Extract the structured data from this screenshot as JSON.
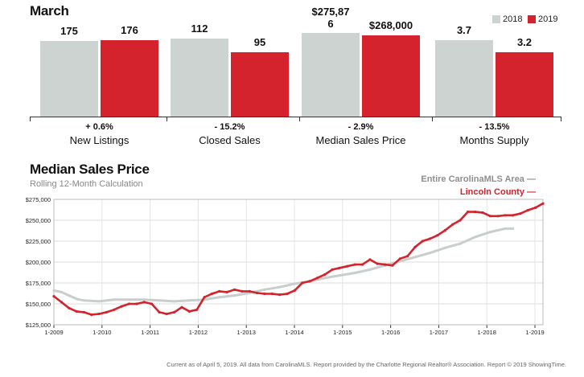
{
  "title": "March",
  "legend": [
    {
      "label": "2018",
      "color": "#cdd3d1"
    },
    {
      "label": "2019",
      "color": "#d4232c"
    }
  ],
  "chart_data": [
    {
      "type": "bar",
      "title": "March",
      "categories": [
        "New Listings",
        "Closed Sales",
        "Median Sales Price",
        "Months Supply"
      ],
      "series": [
        {
          "name": "2018",
          "labels": [
            "175",
            "112",
            "$275,876",
            "3.7"
          ]
        },
        {
          "name": "2019",
          "labels": [
            "176",
            "95",
            "$268,000",
            "3.2"
          ]
        }
      ],
      "changes": [
        "+ 0.6%",
        "- 15.2%",
        "- 2.9%",
        "- 13.5%"
      ],
      "relative_heights": [
        [
          0.9,
          0.91
        ],
        [
          0.93,
          0.77
        ],
        [
          1.0,
          0.97
        ],
        [
          0.91,
          0.77
        ]
      ]
    },
    {
      "type": "line",
      "title": "Median Sales Price",
      "subtitle": "Rolling 12-Month Calculation",
      "ylim": [
        125000,
        275000
      ],
      "yticks": [
        "$125,000",
        "$150,000",
        "$175,000",
        "$200,000",
        "$225,000",
        "$250,000",
        "$275,000"
      ],
      "xticks": [
        "1-2009",
        "1-2010",
        "1-2011",
        "1-2012",
        "1-2013",
        "1-2014",
        "1-2015",
        "1-2016",
        "1-2017",
        "1-2018",
        "1-2019"
      ],
      "x_range_months": [
        0,
        122
      ],
      "series": [
        {
          "name": "Entire CarolinaMLS Area",
          "color": "#c8cecc",
          "points": [
            [
              0,
              166000
            ],
            [
              2,
              164000
            ],
            [
              4,
              160000
            ],
            [
              6,
              156000
            ],
            [
              8,
              154000
            ],
            [
              12,
              153000
            ],
            [
              16,
              155000
            ],
            [
              20,
              155000
            ],
            [
              24,
              155000
            ],
            [
              28,
              154000
            ],
            [
              32,
              153000
            ],
            [
              36,
              154000
            ],
            [
              40,
              155000
            ],
            [
              44,
              158000
            ],
            [
              48,
              160000
            ],
            [
              52,
              163000
            ],
            [
              56,
              167000
            ],
            [
              60,
              170000
            ],
            [
              64,
              174000
            ],
            [
              68,
              177000
            ],
            [
              72,
              181000
            ],
            [
              76,
              184000
            ],
            [
              80,
              187000
            ],
            [
              84,
              191000
            ],
            [
              88,
              196000
            ],
            [
              92,
              201000
            ],
            [
              96,
              206000
            ],
            [
              100,
              211000
            ],
            [
              104,
              217000
            ],
            [
              108,
              222000
            ],
            [
              112,
              230000
            ],
            [
              116,
              236000
            ],
            [
              120,
              240000
            ],
            [
              122,
              240000
            ]
          ]
        },
        {
          "name": "Lincoln County",
          "color": "#d4232c",
          "points": [
            [
              0,
              159000
            ],
            [
              2,
              152000
            ],
            [
              4,
              145000
            ],
            [
              6,
              141000
            ],
            [
              8,
              140000
            ],
            [
              10,
              137000
            ],
            [
              12,
              138000
            ],
            [
              14,
              140000
            ],
            [
              16,
              143000
            ],
            [
              18,
              147000
            ],
            [
              20,
              150000
            ],
            [
              22,
              150000
            ],
            [
              24,
              152000
            ],
            [
              26,
              150000
            ],
            [
              28,
              140000
            ],
            [
              30,
              138000
            ],
            [
              32,
              140000
            ],
            [
              34,
              146000
            ],
            [
              36,
              141000
            ],
            [
              38,
              143000
            ],
            [
              40,
              158000
            ],
            [
              42,
              162000
            ],
            [
              44,
              165000
            ],
            [
              46,
              164000
            ],
            [
              48,
              167000
            ],
            [
              50,
              165000
            ],
            [
              52,
              165000
            ],
            [
              54,
              163000
            ],
            [
              56,
              162000
            ],
            [
              58,
              162000
            ],
            [
              60,
              161000
            ],
            [
              62,
              162000
            ],
            [
              64,
              166000
            ],
            [
              66,
              175000
            ],
            [
              68,
              177000
            ],
            [
              70,
              181000
            ],
            [
              72,
              185000
            ],
            [
              74,
              191000
            ],
            [
              76,
              193000
            ],
            [
              78,
              195000
            ],
            [
              80,
              197000
            ],
            [
              82,
              197000
            ],
            [
              84,
              203000
            ],
            [
              86,
              198000
            ],
            [
              88,
              197000
            ],
            [
              90,
              196000
            ],
            [
              92,
              204000
            ],
            [
              94,
              207000
            ],
            [
              96,
              218000
            ],
            [
              98,
              225000
            ],
            [
              100,
              228000
            ],
            [
              102,
              232000
            ],
            [
              104,
              238000
            ],
            [
              106,
              245000
            ],
            [
              108,
              250000
            ],
            [
              110,
              260000
            ],
            [
              112,
              260000
            ],
            [
              114,
              259000
            ],
            [
              116,
              255000
            ],
            [
              118,
              255000
            ],
            [
              120,
              256000
            ],
            [
              122,
              256000
            ],
            [
              124,
              258000
            ],
            [
              126,
              262000
            ],
            [
              128,
              265000
            ],
            [
              130,
              270000
            ]
          ]
        }
      ]
    }
  ],
  "footer": "Current as of April 5, 2019. All data from CarolinaMLS. Report provided by the Charlotte Regional Realtor® Association. Report © 2019 ShowingTime."
}
